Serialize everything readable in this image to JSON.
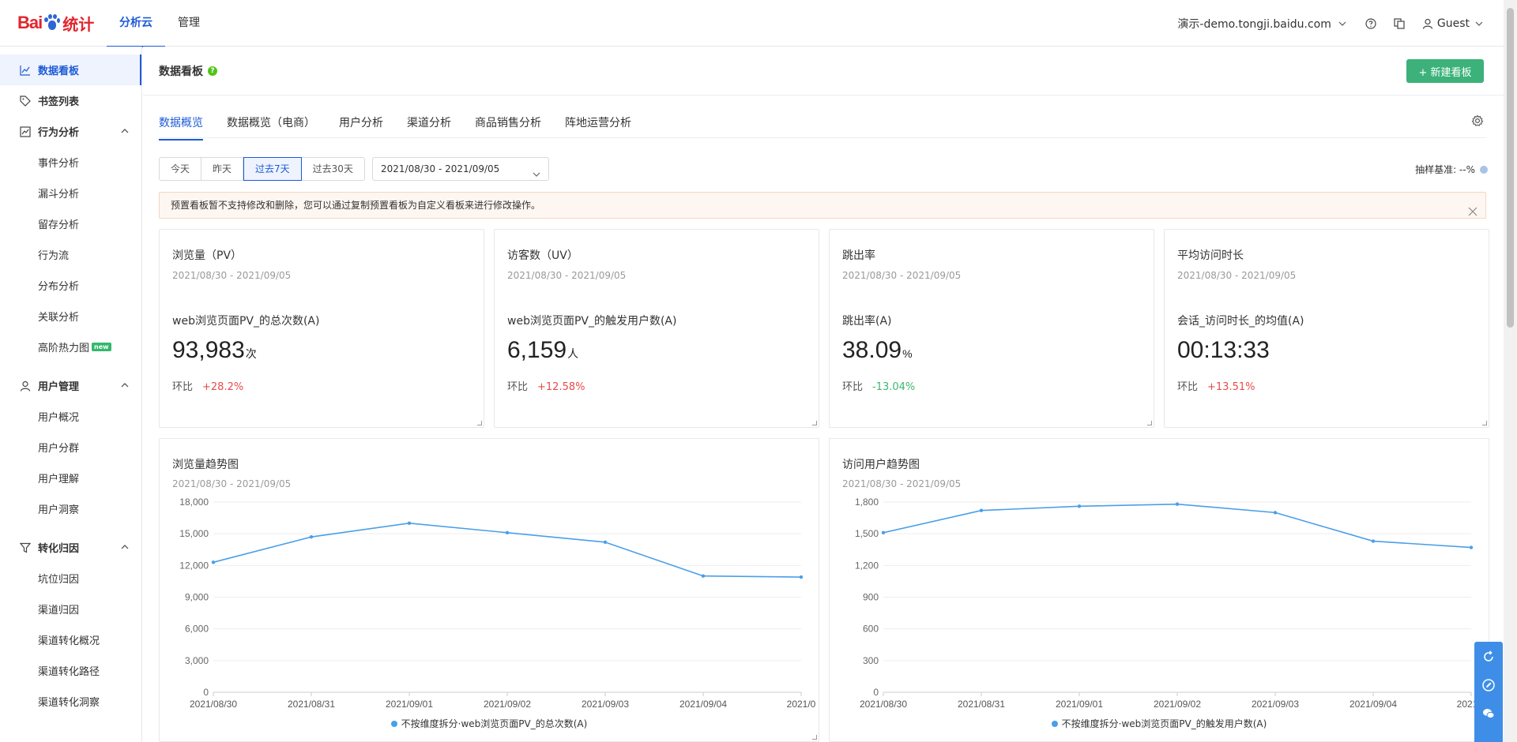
{
  "brand": {
    "logo_left": "Bai",
    "logo_right": "统计",
    "accent": "#1e5bd6",
    "logo_red": "#e0262e"
  },
  "topnav": [
    {
      "label": "分析云",
      "active": true
    },
    {
      "label": "管理",
      "active": false
    }
  ],
  "topright": {
    "site": "演示-demo.tongji.baidu.com",
    "user": "Guest"
  },
  "sidebar": {
    "groups": [
      {
        "label": "数据看板",
        "icon": "line-chart-icon",
        "active": true,
        "items": []
      },
      {
        "label": "书签列表",
        "icon": "tag-icon",
        "items": []
      },
      {
        "label": "行为分析",
        "icon": "behavior-chart-icon",
        "expanded": true,
        "items": [
          "事件分析",
          "漏斗分析",
          "留存分析",
          "行为流",
          "分布分析",
          "关联分析",
          "高阶热力图"
        ]
      },
      {
        "label": "用户管理",
        "icon": "user-icon",
        "expanded": true,
        "items": [
          "用户概况",
          "用户分群",
          "用户理解",
          "用户洞察"
        ]
      },
      {
        "label": "转化归因",
        "icon": "funnel-icon",
        "expanded": true,
        "items": [
          "坑位归因",
          "渠道归因",
          "渠道转化概况",
          "渠道转化路径",
          "渠道转化洞察"
        ]
      }
    ],
    "new_badge": "new"
  },
  "header": {
    "title": "数据看板",
    "help": "?",
    "new_button": "+ 新建看板"
  },
  "tabs": [
    "数据概览",
    "数据概览（电商）",
    "用户分析",
    "渠道分析",
    "商品销售分析",
    "阵地运营分析"
  ],
  "date_ranges": [
    {
      "label": "今天"
    },
    {
      "label": "昨天"
    },
    {
      "label": "过去7天",
      "active": true
    },
    {
      "label": "过去30天"
    }
  ],
  "date_picker": "2021/08/30 - 2021/09/05",
  "sample": "抽样基准: --%",
  "notice": "预置看板暂不支持修改和删除，您可以通过复制预置看板为自定义看板来进行修改操作。",
  "kpis": [
    {
      "title": "浏览量（PV）",
      "date": "2021/08/30 - 2021/09/05",
      "metric": "web浏览页面PV_的总次数(A)",
      "value": "93,983",
      "unit": "次",
      "cmp_label": "环比",
      "cmp": "+28.2%",
      "dir": "up"
    },
    {
      "title": "访客数（UV）",
      "date": "2021/08/30 - 2021/09/05",
      "metric": "web浏览页面PV_的触发用户数(A)",
      "value": "6,159",
      "unit": "人",
      "cmp_label": "环比",
      "cmp": "+12.58%",
      "dir": "up"
    },
    {
      "title": "跳出率",
      "date": "2021/08/30 - 2021/09/05",
      "metric": "跳出率(A)",
      "value": "38.09",
      "unit": "%",
      "cmp_label": "环比",
      "cmp": "-13.04%",
      "dir": "down"
    },
    {
      "title": "平均访问时长",
      "date": "2021/08/30 - 2021/09/05",
      "metric": "会话_访问时长_的均值(A)",
      "value": "00:13:33",
      "unit": "",
      "cmp_label": "环比",
      "cmp": "+13.51%",
      "dir": "up"
    }
  ],
  "chart_data": [
    {
      "type": "line",
      "title": "浏览量趋势图",
      "date": "2021/08/30 - 2021/09/05",
      "categories": [
        "2021/08/30",
        "2021/08/31",
        "2021/09/01",
        "2021/09/02",
        "2021/09/03",
        "2021/09/04",
        "2021/0"
      ],
      "series": [
        {
          "name": "不按维度拆分·web浏览页面PV_的总次数(A)",
          "values": [
            12300,
            14700,
            16000,
            15100,
            14200,
            11000,
            10900
          ],
          "color": "#4a9fe8"
        }
      ],
      "ylim": [
        0,
        18000
      ],
      "yticks": [
        "0",
        "3,000",
        "6,000",
        "9,000",
        "12,000",
        "15,000",
        "18,000"
      ],
      "grid": true,
      "legend": "bottom"
    },
    {
      "type": "line",
      "title": "访问用户趋势图",
      "date": "2021/08/30 - 2021/09/05",
      "categories": [
        "2021/08/30",
        "2021/08/31",
        "2021/09/01",
        "2021/09/02",
        "2021/09/03",
        "2021/09/04",
        "2021/0"
      ],
      "series": [
        {
          "name": "不按维度拆分·web浏览页面PV_的触发用户数(A)",
          "values": [
            1510,
            1720,
            1760,
            1780,
            1700,
            1430,
            1370
          ],
          "color": "#4a9fe8"
        }
      ],
      "ylim": [
        0,
        1800
      ],
      "yticks": [
        "0",
        "300",
        "600",
        "900",
        "1,200",
        "1,500",
        "1,800"
      ],
      "grid": true,
      "legend": "bottom"
    }
  ]
}
